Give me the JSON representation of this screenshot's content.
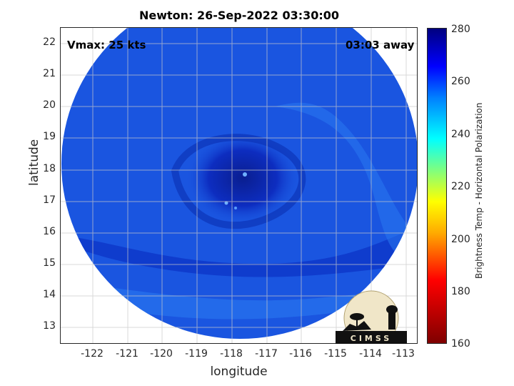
{
  "title": "Newton: 26-Sep-2022 03:30:00",
  "vmax_text": "Vmax: 25 kts",
  "away_text": "03:03 away",
  "axes": {
    "xlabel": "longitude",
    "ylabel": "latitude",
    "xticks": [
      "-122",
      "-121",
      "-120",
      "-119",
      "-118",
      "-117",
      "-116",
      "-115",
      "-114",
      "-113"
    ],
    "yticks": [
      "22",
      "21",
      "20",
      "19",
      "18",
      "17",
      "16",
      "15",
      "14",
      "13"
    ]
  },
  "colorbar": {
    "label": "Brightness Temp - Horizontal Polarization",
    "ticks": [
      "280",
      "260",
      "240",
      "220",
      "200",
      "180",
      "160"
    ]
  },
  "logo_text": "CIMSS",
  "colors": {
    "swath_base": "#1a55e0",
    "swath_dark": "#0a2fb0",
    "swath_light": "#2a78f0",
    "eye_center": "#0a1e90"
  },
  "chart_data": {
    "type": "heatmap",
    "title": "Newton: 26-Sep-2022 03:30:00",
    "xlabel": "longitude",
    "ylabel": "latitude",
    "xlim": [
      -122.9,
      -112.6
    ],
    "ylim": [
      12.5,
      22.5
    ],
    "colorbar_range": [
      160,
      280
    ],
    "colorbar_label": "Brightness Temp - Horizontal Polarization",
    "grid": true,
    "annotations": [
      "Vmax: 25 kts",
      "03:03 away"
    ],
    "storm_center": {
      "lon": -117.6,
      "lat": 17.5
    }
  }
}
